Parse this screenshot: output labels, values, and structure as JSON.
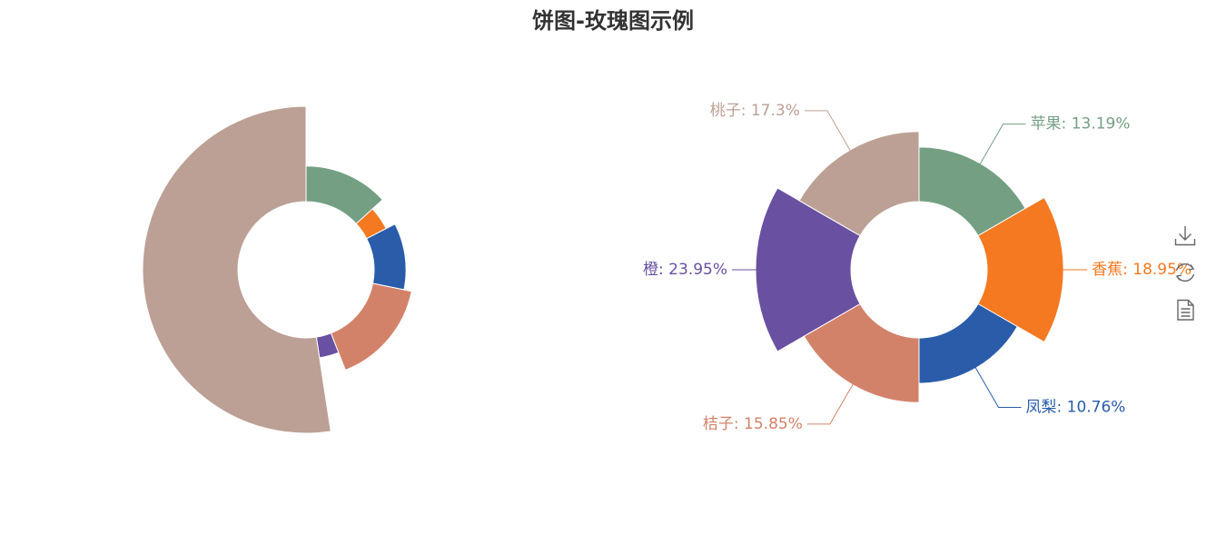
{
  "chart_data": {
    "type": "pie",
    "title": "饼图-玫瑰图示例",
    "categories": [
      "苹果",
      "香蕉",
      "凤梨",
      "桔子",
      "橙",
      "桃子"
    ],
    "colors": [
      "#749f83",
      "#f47920",
      "#2a5caa",
      "#d3826a",
      "#6950a1",
      "#bca095"
    ],
    "charts": [
      {
        "subtype": "rose-radius",
        "labels_shown": false,
        "percents": [
          13.19,
          4.25,
          10.76,
          15.85,
          3.53,
          52.42
        ]
      },
      {
        "subtype": "rose-area",
        "labels_shown": true,
        "percents": [
          13.19,
          18.95,
          10.76,
          15.85,
          23.95,
          17.3
        ],
        "labels": [
          "苹果: 13.19%",
          "香蕉: 18.95%",
          "凤梨: 10.76%",
          "桔子: 15.85%",
          "橙: 23.95%",
          "桃子: 17.3%"
        ]
      }
    ]
  },
  "toolbox": {
    "icons": [
      "download-icon",
      "refresh-icon",
      "data-view-icon"
    ]
  }
}
